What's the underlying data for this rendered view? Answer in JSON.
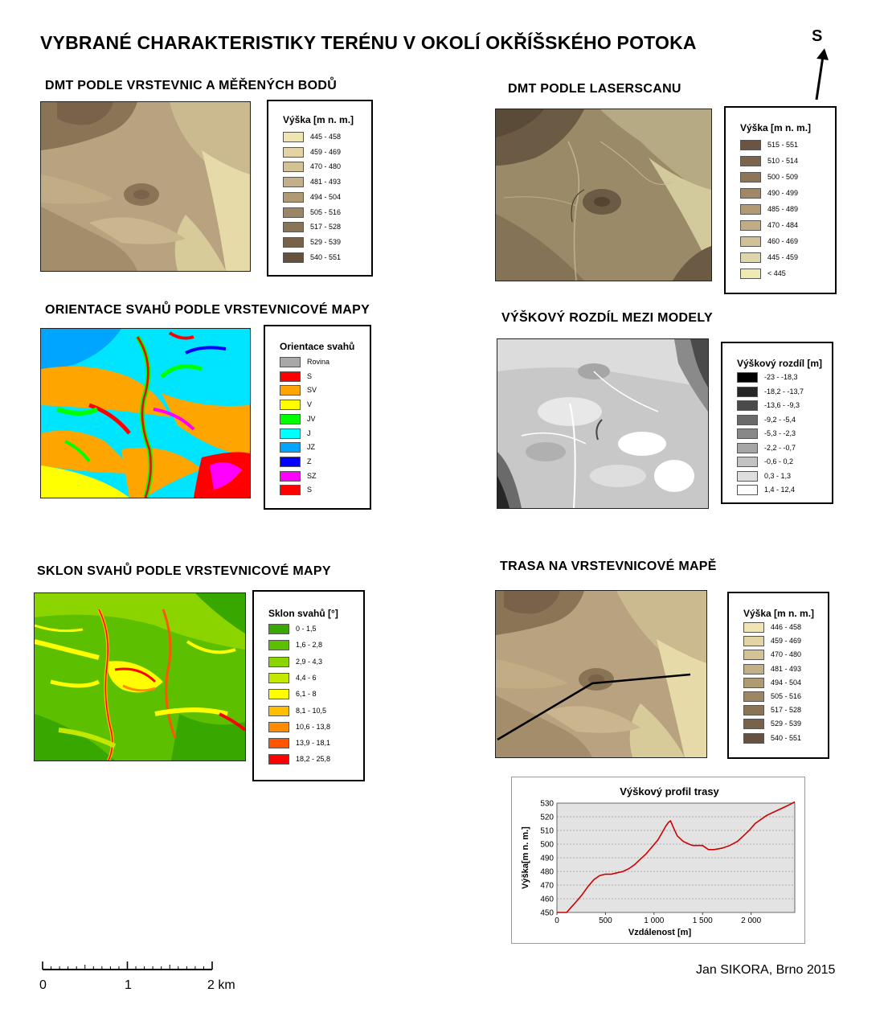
{
  "title": "VYBRANÉ CHARAKTERISTIKY TERÉNU V OKOLÍ OKŘÍŠSKÉHO POTOKA",
  "north_label": "S",
  "author": "Jan SIKORA, Brno 2015",
  "scale_bar": {
    "labels": [
      "0",
      "1",
      "2 km"
    ]
  },
  "panels": {
    "dmt_contours": {
      "title": "DMT PODLE VRSTEVNIC A MĚŘENÝCH BODŮ",
      "legend_title": "Výška [m n. m.]",
      "items": [
        {
          "label": "445 - 458",
          "color": "#f0e4b0"
        },
        {
          "label": "459 - 469",
          "color": "#e2d4a4"
        },
        {
          "label": "470 - 480",
          "color": "#d3c294"
        },
        {
          "label": "481 - 493",
          "color": "#c4b087"
        },
        {
          "label": "494 - 504",
          "color": "#b09a74"
        },
        {
          "label": "505 - 516",
          "color": "#9c8664"
        },
        {
          "label": "517 - 528",
          "color": "#8a7456"
        },
        {
          "label": "529 - 539",
          "color": "#786249"
        },
        {
          "label": "540 - 551",
          "color": "#65513d"
        }
      ]
    },
    "dmt_laser": {
      "title": "DMT PODLE LASERSCANU",
      "legend_title": "Výška [m n. m.]",
      "items": [
        {
          "label": "515 - 551",
          "color": "#6b5441"
        },
        {
          "label": "510 - 514",
          "color": "#7d644c"
        },
        {
          "label": "500 - 509",
          "color": "#8e7558"
        },
        {
          "label": "490 - 499",
          "color": "#a08866"
        },
        {
          "label": "485 - 489",
          "color": "#b19a74"
        },
        {
          "label": "470 - 484",
          "color": "#c1ac86"
        },
        {
          "label": "460 - 469",
          "color": "#d1c196"
        },
        {
          "label": "445 - 459",
          "color": "#e0d5a6"
        },
        {
          "label": "< 445",
          "color": "#efeab4"
        }
      ]
    },
    "aspect": {
      "title": "ORIENTACE SVAHŮ PODLE VRSTEVNICOVÉ MAPY",
      "legend_title": "Orientace svahů",
      "items": [
        {
          "label": "Rovina",
          "color": "#a8a8a8"
        },
        {
          "label": "S",
          "color": "#ff0000"
        },
        {
          "label": "SV",
          "color": "#ffa500"
        },
        {
          "label": "V",
          "color": "#ffff00"
        },
        {
          "label": "JV",
          "color": "#00ff00"
        },
        {
          "label": "J",
          "color": "#00ffff"
        },
        {
          "label": "JZ",
          "color": "#00a5ff"
        },
        {
          "label": "Z",
          "color": "#0000ff"
        },
        {
          "label": "SZ",
          "color": "#ff00ff"
        },
        {
          "label": "S",
          "color": "#ff0000"
        }
      ]
    },
    "difference": {
      "title": "VÝŠKOVÝ ROZDÍL MEZI MODELY",
      "legend_title": "Výškový rozdíl [m]",
      "items": [
        {
          "label": "-23 - -18,3",
          "color": "#000000"
        },
        {
          "label": "-18,2 - -13,7",
          "color": "#262626"
        },
        {
          "label": "-13,6 - -9,3",
          "color": "#4a4a4a"
        },
        {
          "label": "-9,2 - -5,4",
          "color": "#6a6a6a"
        },
        {
          "label": "-5,3 - -2,3",
          "color": "#888888"
        },
        {
          "label": "-2,2 - -0,7",
          "color": "#a6a6a6"
        },
        {
          "label": "-0,6 - 0,2",
          "color": "#c2c2c2"
        },
        {
          "label": "0,3 - 1,3",
          "color": "#dedede"
        },
        {
          "label": "1,4 - 12,4",
          "color": "#ffffff"
        }
      ]
    },
    "slope": {
      "title": "SKLON SVAHŮ PODLE VRSTEVNICOVÉ MAPY",
      "legend_title": "Sklon svahů [°]",
      "items": [
        {
          "label": "0 - 1,5",
          "color": "#38a800"
        },
        {
          "label": "1,6 - 2,8",
          "color": "#5cbf00"
        },
        {
          "label": "2,9 - 4,3",
          "color": "#8cd400"
        },
        {
          "label": "4,4 - 6",
          "color": "#c4e800"
        },
        {
          "label": "6,1 - 8",
          "color": "#ffff00"
        },
        {
          "label": "8,1 - 10,5",
          "color": "#ffbf00"
        },
        {
          "label": "10,6 - 13,8",
          "color": "#ff8c00"
        },
        {
          "label": "13,9 - 18,1",
          "color": "#ff5500"
        },
        {
          "label": "18,2 - 25,8",
          "color": "#ff0000"
        }
      ]
    },
    "route": {
      "title": "TRASA NA VRSTEVNICOVÉ MAPĚ",
      "legend_title": "Výška [m n. m.]",
      "items": [
        {
          "label": "446 - 458",
          "color": "#f0e4b0"
        },
        {
          "label": "459 - 469",
          "color": "#e2d4a4"
        },
        {
          "label": "470 - 480",
          "color": "#d3c294"
        },
        {
          "label": "481 - 493",
          "color": "#c4b087"
        },
        {
          "label": "494 - 504",
          "color": "#b09a74"
        },
        {
          "label": "505 - 516",
          "color": "#9c8664"
        },
        {
          "label": "517 - 528",
          "color": "#8a7456"
        },
        {
          "label": "529 - 539",
          "color": "#786249"
        },
        {
          "label": "540 - 551",
          "color": "#65513d"
        }
      ]
    }
  },
  "chart_data": {
    "type": "line",
    "title": "Výškový profil trasy",
    "xlabel": "Vzdálenost [m]",
    "ylabel": "Výška[m n. m.]",
    "xlim": [
      0,
      2450
    ],
    "ylim": [
      450,
      530
    ],
    "xticks": [
      0,
      500,
      1000,
      1500,
      2000
    ],
    "xtick_labels": [
      "0",
      "500",
      "1 000",
      "1 500",
      "2 000"
    ],
    "yticks": [
      450,
      460,
      470,
      480,
      490,
      500,
      510,
      520,
      530
    ],
    "grid": true,
    "series": [
      {
        "color": "#cc0000",
        "x": [
          0,
          40,
          100,
          150,
          200,
          260,
          320,
          380,
          440,
          500,
          560,
          620,
          680,
          740,
          800,
          860,
          920,
          980,
          1040,
          1080,
          1120,
          1150,
          1170,
          1200,
          1240,
          1300,
          1360,
          1400,
          1440,
          1500,
          1560,
          1620,
          1700,
          1780,
          1860,
          1920,
          1980,
          2040,
          2100,
          2160,
          2220,
          2280,
          2340,
          2400,
          2450
        ],
        "y": [
          450,
          450,
          450,
          454,
          458,
          463,
          469,
          474,
          477,
          478,
          478,
          479,
          480,
          482,
          485,
          489,
          493,
          498,
          503,
          508,
          513,
          516,
          517,
          512,
          506,
          502,
          500,
          499,
          499,
          499,
          496,
          496,
          497,
          499,
          502,
          506,
          510,
          515,
          518,
          521,
          523,
          525,
          527,
          529,
          531
        ]
      }
    ]
  }
}
